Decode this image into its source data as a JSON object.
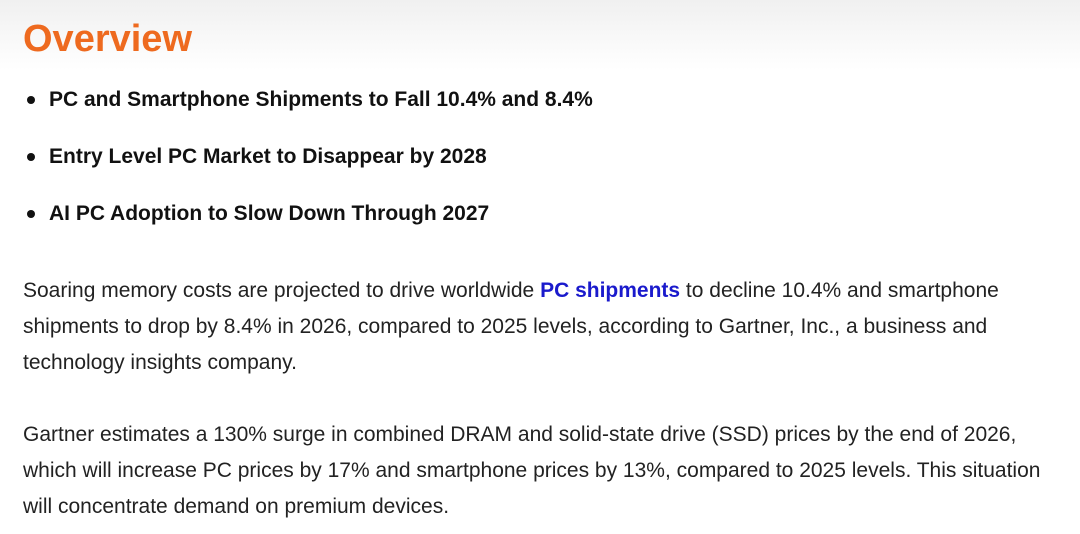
{
  "article": {
    "title": "Overview",
    "highlights": [
      "PC and Smartphone Shipments to Fall 10.4% and 8.4%",
      "Entry Level PC Market to Disappear by 2028",
      "AI PC Adoption to Slow Down Through 2027"
    ],
    "paragraph1": {
      "before_link": "Soaring memory costs are projected to drive worldwide ",
      "link_text": "PC shipments",
      "after_link": " to decline 10.4% and smartphone shipments to drop by 8.4% in 2026, compared to 2025 levels, according to Gartner, Inc., a business and technology insights company."
    },
    "paragraph2": "Gartner estimates a 130% surge in combined DRAM and solid-state drive (SSD) prices by the end of 2026, which will increase PC prices by 17% and smartphone prices by 13%, compared to 2025 levels. This situation will concentrate demand on premium devices."
  },
  "colors": {
    "title": "#ee6a1f",
    "link": "#1a1acc",
    "text": "#222222"
  }
}
